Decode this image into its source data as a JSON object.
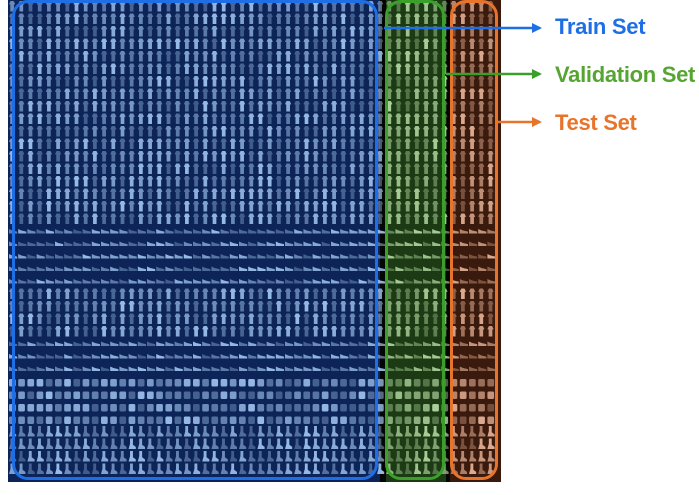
{
  "labels": {
    "train": "Train Set",
    "validation": "Validation Set",
    "test": "Test Set"
  },
  "colors": {
    "train": "#1e6fe6",
    "validation": "#3aa02a",
    "validation_text": "#56a532",
    "test": "#e8742b",
    "background": "#050505"
  },
  "split_order": [
    "train",
    "validation",
    "test"
  ]
}
